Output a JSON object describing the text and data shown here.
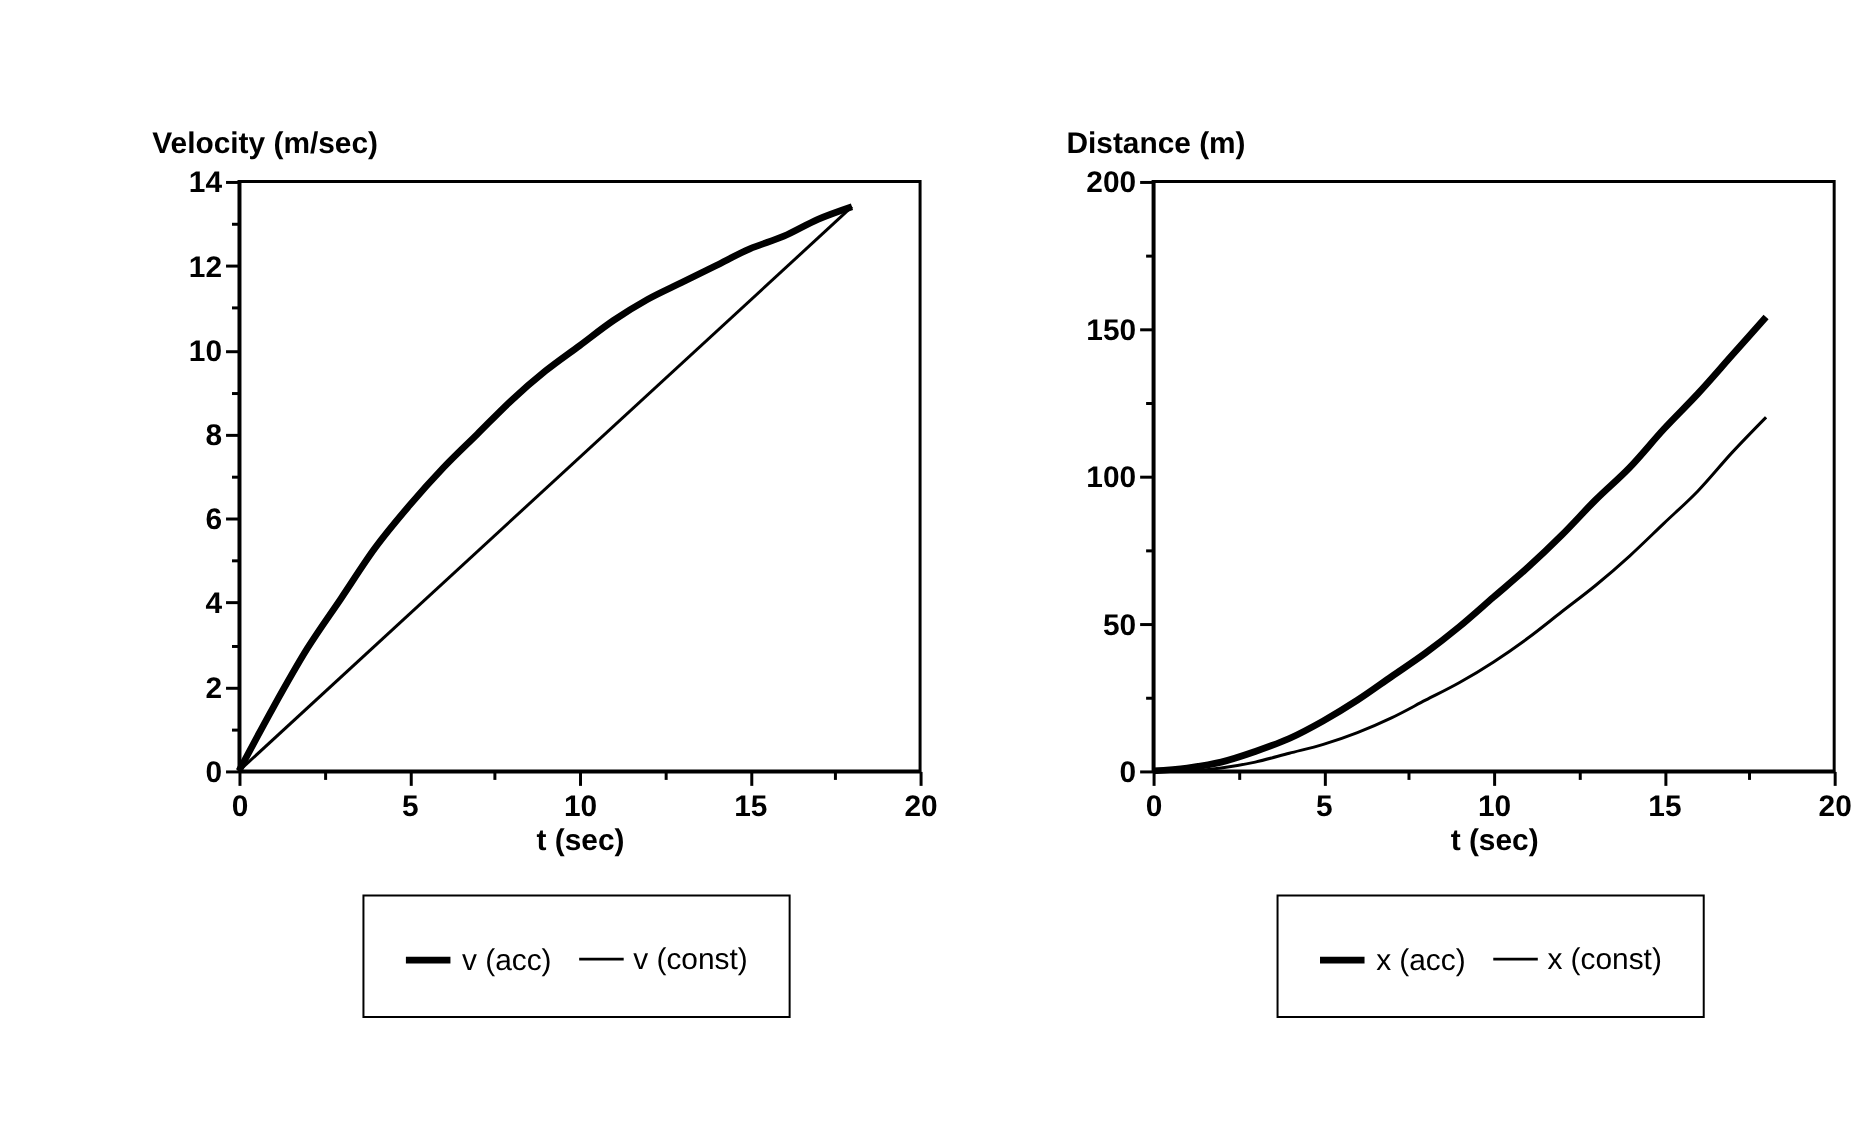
{
  "chart_data": [
    {
      "type": "line",
      "ylabel": "Velocity (m/sec)",
      "xlabel": "t (sec)",
      "x": [
        0,
        1,
        2,
        3,
        4,
        5,
        6,
        7,
        8,
        9,
        10,
        11,
        12,
        13,
        14,
        15,
        16,
        17,
        18
      ],
      "series": [
        {
          "name": "v (acc)",
          "color": "#000000",
          "values": [
            0,
            1.5,
            2.9,
            4.1,
            5.3,
            6.3,
            7.2,
            8.0,
            8.8,
            9.5,
            10.1,
            10.7,
            11.2,
            11.6,
            12.0,
            12.4,
            12.7,
            13.1,
            13.4
          ]
        },
        {
          "name": "v (const)",
          "color": "#000000",
          "x": [
            0,
            18
          ],
          "values": [
            0,
            13.4
          ]
        }
      ],
      "xlim": [
        0,
        20
      ],
      "ylim": [
        0,
        14
      ],
      "xticks": [
        0,
        {
          "value": 2.5,
          "label": null
        },
        5,
        {
          "value": 7.5,
          "label": null
        },
        10,
        {
          "value": 12.5,
          "label": null
        },
        15,
        {
          "value": 17.5,
          "label": null
        },
        20
      ],
      "yticks": [
        0,
        {
          "value": 1,
          "label": null
        },
        2,
        {
          "value": 3,
          "label": null
        },
        4,
        {
          "value": 5,
          "label": null
        },
        6,
        {
          "value": 7,
          "label": null
        },
        8,
        {
          "value": 9,
          "label": null
        },
        10,
        {
          "value": 11,
          "label": null
        },
        12,
        {
          "value": 13,
          "label": null
        },
        14
      ],
      "grid": false,
      "legend": "bottom"
    },
    {
      "type": "line",
      "ylabel": "Distance (m)",
      "xlabel": "t (sec)",
      "x": [
        0,
        1,
        2,
        3,
        4,
        5,
        6,
        7,
        8,
        9,
        10,
        11,
        12,
        13,
        14,
        15,
        16,
        17,
        18
      ],
      "series": [
        {
          "name": "x (acc)",
          "color": "#000000",
          "values": [
            0,
            1,
            3,
            6.6,
            11,
            17,
            24,
            32,
            40,
            49,
            59,
            69,
            80,
            92,
            103,
            116,
            128,
            141,
            154
          ]
        },
        {
          "name": "x (const)",
          "color": "#000000",
          "values": [
            0,
            0,
            1,
            3,
            6,
            9,
            13,
            18,
            24,
            30,
            37,
            45,
            54,
            63,
            73,
            84,
            95,
            108,
            120
          ]
        }
      ],
      "xlim": [
        0,
        20
      ],
      "ylim": [
        0,
        200
      ],
      "xticks": [
        0,
        {
          "value": 2.5,
          "label": null
        },
        5,
        {
          "value": 7.5,
          "label": null
        },
        10,
        {
          "value": 12.5,
          "label": null
        },
        15,
        {
          "value": 17.5,
          "label": null
        },
        20
      ],
      "yticks": [
        0,
        {
          "value": 25,
          "label": null
        },
        50,
        {
          "value": 75,
          "label": null
        },
        100,
        {
          "value": 125,
          "label": null
        },
        150,
        {
          "value": 175,
          "label": null
        },
        200
      ],
      "grid": false,
      "legend": "bottom"
    }
  ]
}
